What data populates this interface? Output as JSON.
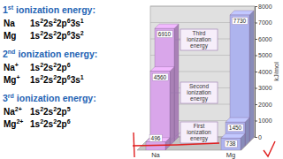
{
  "chart_data": {
    "type": "bar",
    "categories": [
      "Na",
      "Mg"
    ],
    "series": [
      {
        "name": "First ionization energy",
        "values": [
          496,
          738
        ],
        "colors": [
          "#d9a6ea",
          "#aeb4ee"
        ]
      },
      {
        "name": "Second ionization energy",
        "values": [
          4560,
          1450
        ],
        "colors": [
          "#d9a6ea",
          "#aeb4ee"
        ]
      },
      {
        "name": "Third ionization energy",
        "values": [
          6910,
          7730
        ],
        "colors": [
          "#d9a6ea",
          "#aeb4ee"
        ]
      }
    ],
    "y_label": "kJ/mol",
    "ylim": [
      0,
      8000
    ],
    "yticks": [
      0,
      1000,
      2000,
      3000,
      4000,
      5000,
      6000,
      7000,
      8000
    ],
    "grid": true,
    "data_labels": true
  },
  "text_panel": {
    "sections": [
      {
        "heading": {
          "number": "1",
          "suffix": "st",
          "text": "ionization energy:"
        },
        "lines": [
          {
            "species": {
              "symbol": "Na"
            },
            "config": [
              [
                "1s",
                "2"
              ],
              [
                "2s",
                "2"
              ],
              [
                "2p",
                "6"
              ],
              [
                "3s",
                "1"
              ]
            ]
          },
          {
            "species": {
              "symbol": "Mg"
            },
            "config": [
              [
                "1s",
                "2"
              ],
              [
                "2s",
                "2"
              ],
              [
                "2p",
                "6"
              ],
              [
                "3s",
                "2"
              ]
            ]
          }
        ]
      },
      {
        "heading": {
          "number": "2",
          "suffix": "nd",
          "text": "ionization energy:"
        },
        "lines": [
          {
            "species": {
              "symbol": "Na",
              "charge": "+"
            },
            "config": [
              [
                "1s",
                "2"
              ],
              [
                "2s",
                "2"
              ],
              [
                "2p",
                "6"
              ]
            ]
          },
          {
            "species": {
              "symbol": "Mg",
              "charge": "+"
            },
            "config": [
              [
                "1s",
                "2"
              ],
              [
                "2s",
                "2"
              ],
              [
                "2p",
                "6"
              ],
              [
                "3s",
                "1"
              ]
            ]
          }
        ]
      },
      {
        "heading": {
          "number": "3",
          "suffix": "rd",
          "text": "ionization energy:"
        },
        "lines": [
          {
            "species": {
              "symbol": "Na",
              "charge": "2+"
            },
            "config": [
              [
                "1s",
                "2"
              ],
              [
                "2s",
                "2"
              ],
              [
                "2p",
                "5"
              ]
            ]
          },
          {
            "species": {
              "symbol": "Mg",
              "charge": "2+"
            },
            "config": [
              [
                "1s",
                "2"
              ],
              [
                "2s",
                "2"
              ],
              [
                "2p",
                "6"
              ]
            ]
          }
        ]
      }
    ]
  }
}
